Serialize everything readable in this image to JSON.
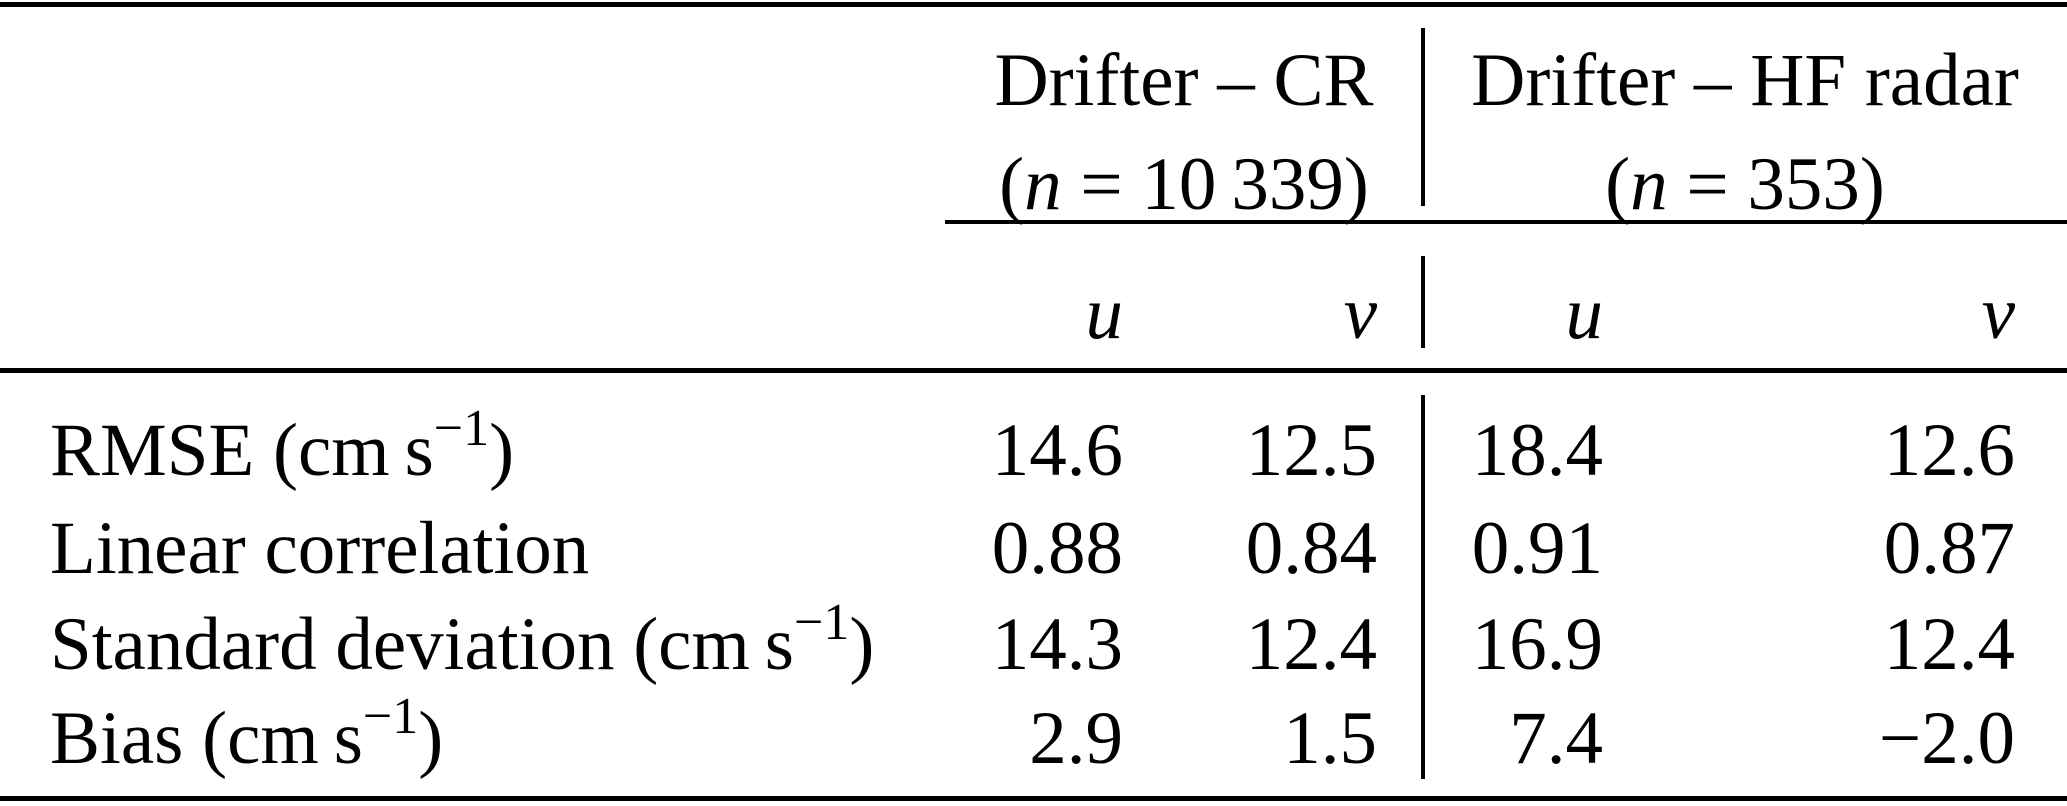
{
  "header": {
    "groups": [
      {
        "title": "Drifter – CR",
        "count": {
          "open": "(",
          "var": "n",
          "eq": " = ",
          "value": "10 339",
          "close": ")"
        }
      },
      {
        "title": "Drifter – HF radar",
        "count": {
          "open": "(",
          "var": "n",
          "eq": " = ",
          "value": "353",
          "close": ")"
        }
      }
    ],
    "sub_columns": [
      "u",
      "v",
      "u",
      "v"
    ]
  },
  "rows": [
    {
      "label": {
        "prefix": "RMSE (cm s",
        "sup": "−1",
        "suffix": ")"
      },
      "values": [
        "14.6",
        "12.5",
        "18.4",
        "12.6"
      ]
    },
    {
      "label": {
        "prefix": "Linear correlation",
        "sup": "",
        "suffix": ""
      },
      "values": [
        "0.88",
        "0.84",
        "0.91",
        "0.87"
      ]
    },
    {
      "label": {
        "prefix": "Standard deviation (cm s",
        "sup": "−1",
        "suffix": ")"
      },
      "values": [
        "14.3",
        "12.4",
        "16.9",
        "12.4"
      ]
    },
    {
      "label": {
        "prefix": "Bias (cm s",
        "sup": "−1",
        "suffix": ")"
      },
      "values": [
        "2.9",
        "1.5",
        "7.4",
        "−2.0"
      ]
    }
  ],
  "colors": {
    "background": "#ffffff",
    "text": "#000000",
    "rule": "#000000"
  },
  "chart_data": {
    "type": "table",
    "column_groups": [
      {
        "label": "Drifter – CR",
        "n": 10339,
        "sub_columns": [
          "u",
          "v"
        ]
      },
      {
        "label": "Drifter – HF radar",
        "n": 353,
        "sub_columns": [
          "u",
          "v"
        ]
      }
    ],
    "row_labels": [
      "RMSE (cm s−1)",
      "Linear correlation",
      "Standard deviation (cm s−1)",
      "Bias (cm s−1)"
    ],
    "values": [
      [
        14.6,
        12.5,
        18.4,
        12.6
      ],
      [
        0.88,
        0.84,
        0.91,
        0.87
      ],
      [
        14.3,
        12.4,
        16.9,
        12.4
      ],
      [
        2.9,
        1.5,
        7.4,
        -2.0
      ]
    ]
  }
}
